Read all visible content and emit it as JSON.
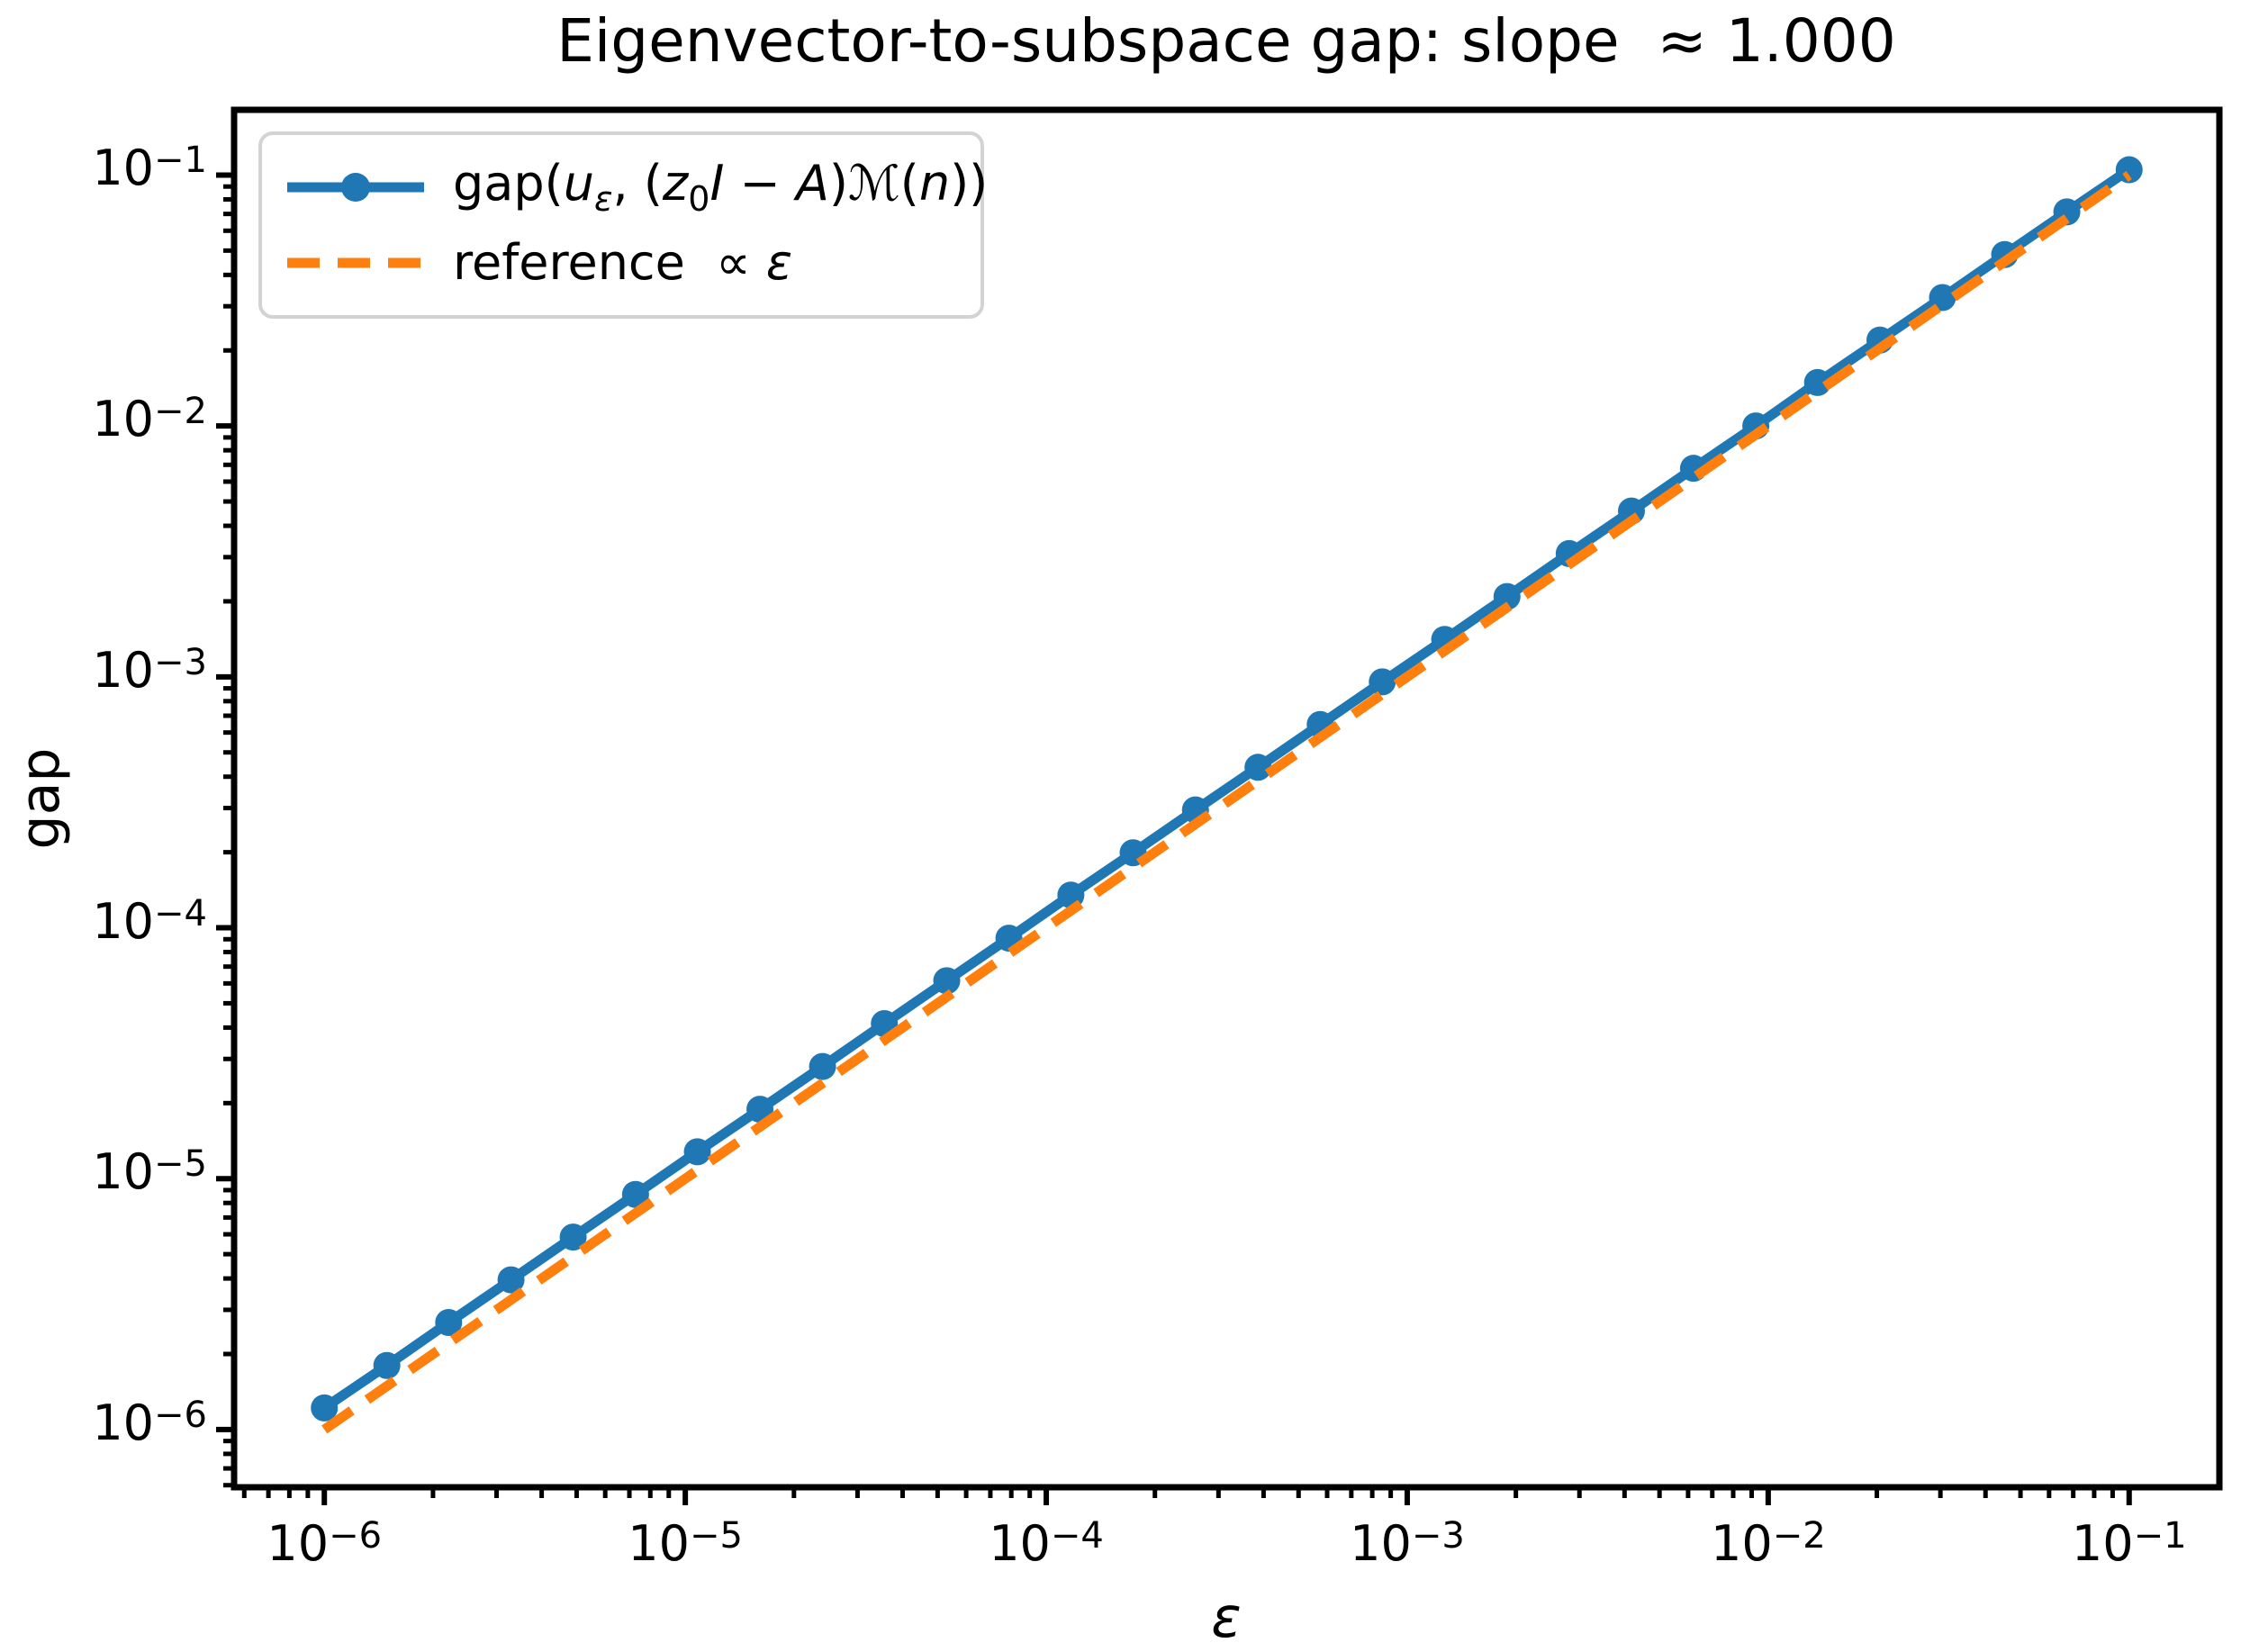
{
  "figure": {
    "title": "Eigenvector-to-subspace gap: slope  ≈ 1.000",
    "xlabel_html": "<i>ε</i>",
    "xlabel_text": "ε",
    "ylabel": "gap",
    "background_color": "#ffffff",
    "spine_color": "#000000"
  },
  "legend": {
    "position": "upper left",
    "border_color": "#d3d3d3",
    "entries": [
      {
        "label_text": "gap(uε, (z0I − A)ℳ(n))",
        "label_html": "gap(<i>u</i><sub><i>ε</i></sub>, (<i>z</i><sub>0</sub><i>I</i> − <i>A</i>)<span class=\"script-m\">ℳ</span>(<i>n</i>))",
        "color": "#1f77b4",
        "style": "solid-line-circle-marker"
      },
      {
        "label_text": "reference  ∝ ε",
        "label_html": "reference  ∝ <i>ε</i>",
        "color": "#ff7f0e",
        "style": "dashed-line"
      }
    ]
  },
  "chart_data": {
    "type": "line",
    "title": "Eigenvector-to-subspace gap: slope ≈ 1.000",
    "xlabel": "ε",
    "ylabel": "gap",
    "x_scale": "log",
    "y_scale": "log",
    "grid": false,
    "legend_position": "upper left",
    "xlim_log10": [
      -6.25,
      -0.75
    ],
    "ylim_log10": [
      -6.23,
      -0.74
    ],
    "x_ticks": [
      {
        "exponent": -6,
        "mantissa": "10",
        "exponent_display": "−6",
        "label": "10⁻⁶"
      },
      {
        "exponent": -5,
        "mantissa": "10",
        "exponent_display": "−5",
        "label": "10⁻⁵"
      },
      {
        "exponent": -4,
        "mantissa": "10",
        "exponent_display": "−4",
        "label": "10⁻⁴"
      },
      {
        "exponent": -3,
        "mantissa": "10",
        "exponent_display": "−3",
        "label": "10⁻³"
      },
      {
        "exponent": -2,
        "mantissa": "10",
        "exponent_display": "−2",
        "label": "10⁻²"
      },
      {
        "exponent": -1,
        "mantissa": "10",
        "exponent_display": "−1",
        "label": "10⁻¹"
      }
    ],
    "y_ticks": [
      {
        "exponent": -1,
        "mantissa": "10",
        "exponent_display": "−1",
        "label": "10⁻¹"
      },
      {
        "exponent": -2,
        "mantissa": "10",
        "exponent_display": "−2",
        "label": "10⁻²"
      },
      {
        "exponent": -3,
        "mantissa": "10",
        "exponent_display": "−3",
        "label": "10⁻³"
      },
      {
        "exponent": -4,
        "mantissa": "10",
        "exponent_display": "−4",
        "label": "10⁻⁴"
      },
      {
        "exponent": -5,
        "mantissa": "10",
        "exponent_display": "−5",
        "label": "10⁻⁵"
      },
      {
        "exponent": -6,
        "mantissa": "10",
        "exponent_display": "−6",
        "label": "10⁻⁶"
      }
    ],
    "series": [
      {
        "name": "gap(uε, (z0I − A)ℳ(n))",
        "color": "#1f77b4",
        "line_style": "solid",
        "marker": "circle",
        "x": [
          1e-06,
          1.49e-06,
          2.21e-06,
          3.29e-06,
          4.89e-06,
          7.28e-06,
          1.08e-05,
          1.61e-05,
          2.4e-05,
          3.56e-05,
          5.3e-05,
          7.88e-05,
          0.000117,
          0.000174,
          0.000259,
          0.000386,
          0.000574,
          0.000853,
          0.00127,
          0.00189,
          0.00281,
          0.00418,
          0.00621,
          0.00924,
          0.0137,
          0.0204,
          0.0304,
          0.0452,
          0.0672,
          0.1
        ],
        "y": [
          1.22e-06,
          1.8e-06,
          2.67e-06,
          3.95e-06,
          5.85e-06,
          8.65e-06,
          1.28e-05,
          1.89e-05,
          2.8e-05,
          4.15e-05,
          6.15e-05,
          9.09e-05,
          0.000135,
          0.000199,
          0.000295,
          0.000436,
          0.000646,
          0.000955,
          0.00141,
          0.00209,
          0.0031,
          0.00458,
          0.00678,
          0.01,
          0.0149,
          0.022,
          0.0325,
          0.0482,
          0.0713,
          0.105
        ]
      },
      {
        "name": "reference ∝ ε",
        "color": "#ff7f0e",
        "line_style": "dashed",
        "marker": "none",
        "x": [
          1e-06,
          0.1
        ],
        "y": [
          1e-06,
          0.1
        ]
      }
    ]
  }
}
